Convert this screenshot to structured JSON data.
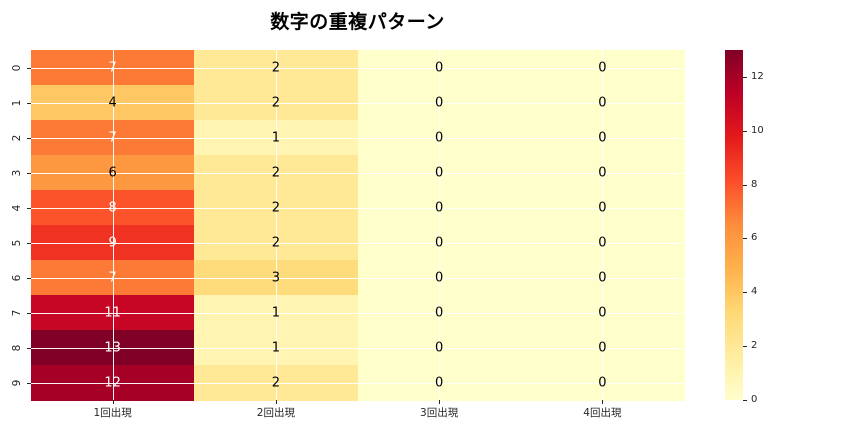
{
  "chart_data": {
    "type": "heatmap",
    "title": "数字の重複パターン",
    "row_labels": [
      "0",
      "1",
      "2",
      "3",
      "4",
      "5",
      "6",
      "7",
      "8",
      "9"
    ],
    "col_labels": [
      "1回出現",
      "2回出現",
      "3回出現",
      "4回出現"
    ],
    "values": [
      [
        7,
        2,
        0,
        0
      ],
      [
        4,
        2,
        0,
        0
      ],
      [
        7,
        1,
        0,
        0
      ],
      [
        6,
        2,
        0,
        0
      ],
      [
        8,
        2,
        0,
        0
      ],
      [
        9,
        2,
        0,
        0
      ],
      [
        7,
        3,
        0,
        0
      ],
      [
        11,
        1,
        0,
        0
      ],
      [
        13,
        1,
        0,
        0
      ],
      [
        12,
        2,
        0,
        0
      ]
    ],
    "vmin": 0,
    "vmax": 13,
    "colormap": "YlOrRd",
    "colormap_stops": [
      "#ffffcc",
      "#ffeda0",
      "#fed976",
      "#feb24c",
      "#fd8d3c",
      "#fc4e2a",
      "#e31a1c",
      "#bd0026",
      "#800026"
    ],
    "colorbar_ticks": [
      0,
      2,
      4,
      6,
      8,
      10,
      12
    ],
    "annotation_color_dark": "#000000",
    "annotation_color_light": "#ffffff",
    "grid": true,
    "legend_position": "right-colorbar",
    "xlabel": "",
    "ylabel": ""
  }
}
